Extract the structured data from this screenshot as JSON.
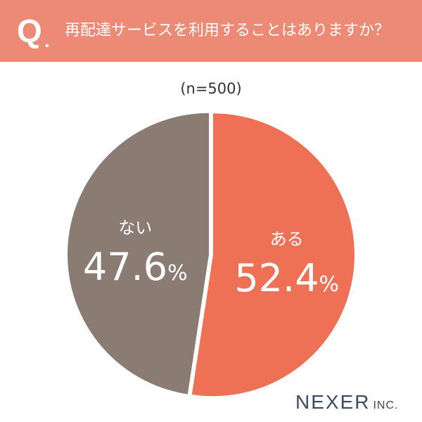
{
  "header": {
    "q_mark": "Q",
    "q_dot": ".",
    "question": "再配達サービスを利用することはありますか？"
  },
  "sample_size": "(n=500)",
  "chart_data": {
    "type": "pie",
    "labels": [
      "ある",
      "ない"
    ],
    "values": [
      52.4,
      47.6
    ],
    "value_labels": [
      "52.4",
      "47.6"
    ],
    "unit": "%",
    "colors": [
      "#ef7155",
      "#8b7c73"
    ],
    "title": "再配達サービスを利用することはありますか？",
    "start": "top, clockwise"
  },
  "logo": {
    "main": "NEXER",
    "sub": "INC."
  },
  "colors": {
    "header_bg": "#ec8a76",
    "logo": "#3a4a66"
  }
}
